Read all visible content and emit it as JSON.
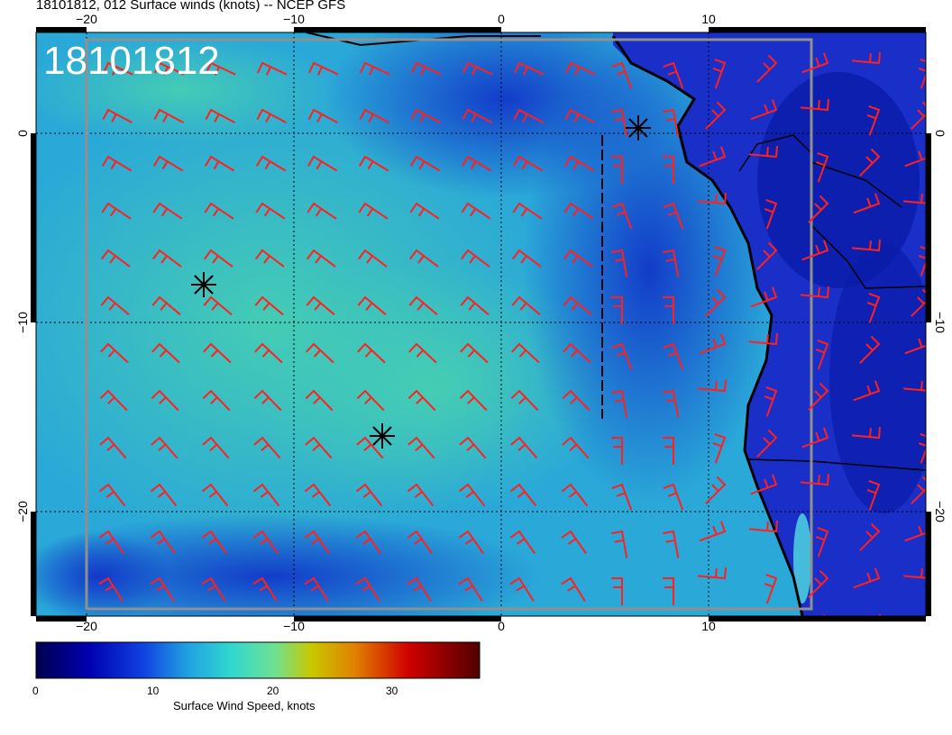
{
  "title": "18101812, 012 Surface winds (knots) -- NCEP GFS",
  "map_label": "18101812",
  "axes": {
    "lon_ticks": [
      "−20",
      "−10",
      "0",
      "10"
    ],
    "lat_ticks": [
      "0",
      "−10",
      "−20"
    ]
  },
  "colorbar": {
    "label": "Surface Wind Speed, knots",
    "ticks": [
      "0",
      "10",
      "20",
      "30"
    ],
    "colors": [
      "#000060",
      "#0000c0",
      "#1060e0",
      "#30b0e0",
      "#40d8c0",
      "#80e080",
      "#c8c800",
      "#e09000",
      "#d00000",
      "#600000"
    ]
  },
  "palette": {
    "ocean_low": "#1f4fd8",
    "ocean_mid": "#2a9ad8",
    "ocean_high": "#40c8b8",
    "barb_color": "#ff2020",
    "coast_color": "#000000"
  },
  "markers": [
    "star-marker",
    "star-marker",
    "star-marker"
  ]
}
